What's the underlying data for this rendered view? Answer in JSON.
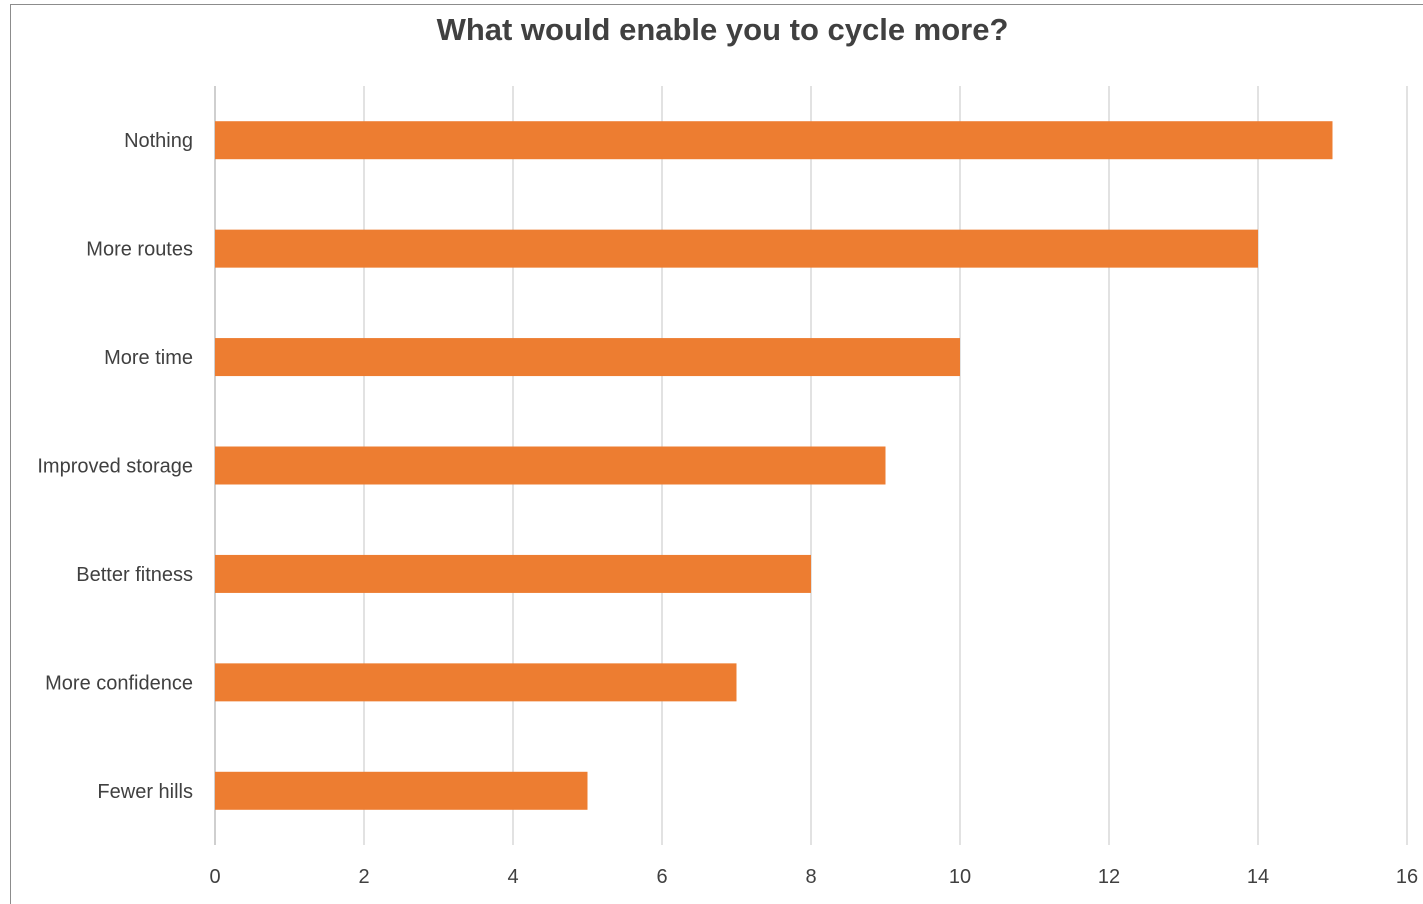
{
  "chart_data": {
    "type": "bar",
    "orientation": "horizontal",
    "title": "What would enable you to cycle more?",
    "categories": [
      "Nothing",
      "More routes",
      "More time",
      "Improved storage",
      "Better fitness",
      "More confidence",
      "Fewer hills"
    ],
    "values": [
      15,
      14,
      10,
      9,
      8,
      7,
      5
    ],
    "xlim": [
      0,
      16
    ],
    "xticks": [
      "0",
      "2",
      "4",
      "6",
      "8",
      "10",
      "12",
      "14",
      "16"
    ],
    "xlabel": "",
    "ylabel": "",
    "grid": "vertical",
    "legend": "none",
    "bar_color": "#ED7D31"
  }
}
